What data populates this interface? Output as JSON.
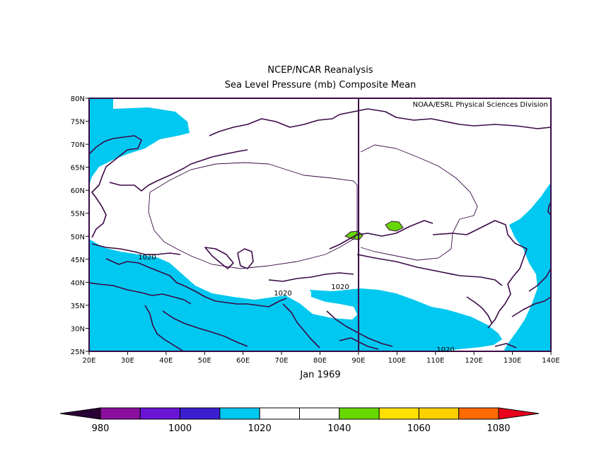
{
  "title": "NCEP/NCAR Reanalysis",
  "subtitle": "Sea Level Pressure (mb) Composite Mean",
  "credit": "NOAA/ESRL Physical Sciences Division",
  "period": "Jan 1969",
  "contour_label": "1020",
  "x_ticks": [
    "20E",
    "30E",
    "40E",
    "50E",
    "60E",
    "70E",
    "80E",
    "90E",
    "100E",
    "110E",
    "120E",
    "130E",
    "140E"
  ],
  "y_ticks": [
    "25N",
    "30N",
    "35N",
    "40N",
    "45N",
    "50N",
    "55N",
    "60N",
    "65N",
    "70N",
    "75N",
    "80N"
  ],
  "colorbar": {
    "labels": [
      "980",
      "1000",
      "1020",
      "1040",
      "1060",
      "1080"
    ],
    "colors": [
      "#2b0036",
      "#8b0f9e",
      "#6a14d6",
      "#3a1fd0",
      "#00c8f0",
      "#ffffff",
      "#ffffff",
      "#66d800",
      "#ffe000",
      "#ffd000",
      "#ff6a00",
      "#e8001c"
    ]
  },
  "colors": {
    "fill_1010_1020": "#00c8f0",
    "fill_1040_1050": "#66d800",
    "coast": "#3a0a46"
  }
}
